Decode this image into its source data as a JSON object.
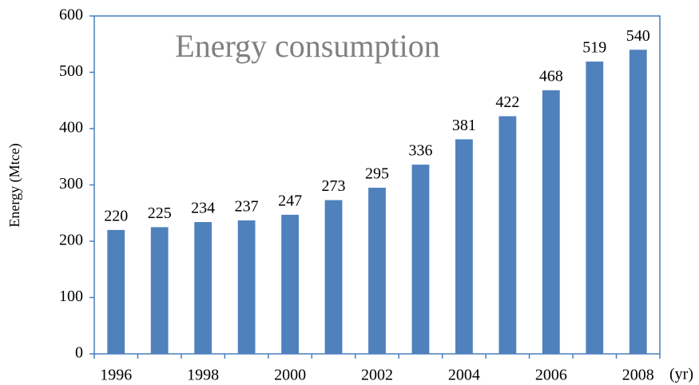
{
  "chart_data": {
    "type": "bar",
    "title": "Energy consumption",
    "y_label": "Energy (Mtce)",
    "x_unit": "(yr)",
    "categories": [
      "1996",
      null,
      "1998",
      null,
      "2000",
      null,
      "2002",
      null,
      "2004",
      null,
      "2006",
      null,
      "2008"
    ],
    "values": [
      220,
      225,
      234,
      237,
      247,
      273,
      295,
      336,
      381,
      422,
      468,
      519,
      540
    ],
    "color": "#4f81bd",
    "ylim": [
      0,
      600
    ],
    "yticks": [
      0,
      100,
      200,
      300,
      400,
      500,
      600
    ]
  }
}
